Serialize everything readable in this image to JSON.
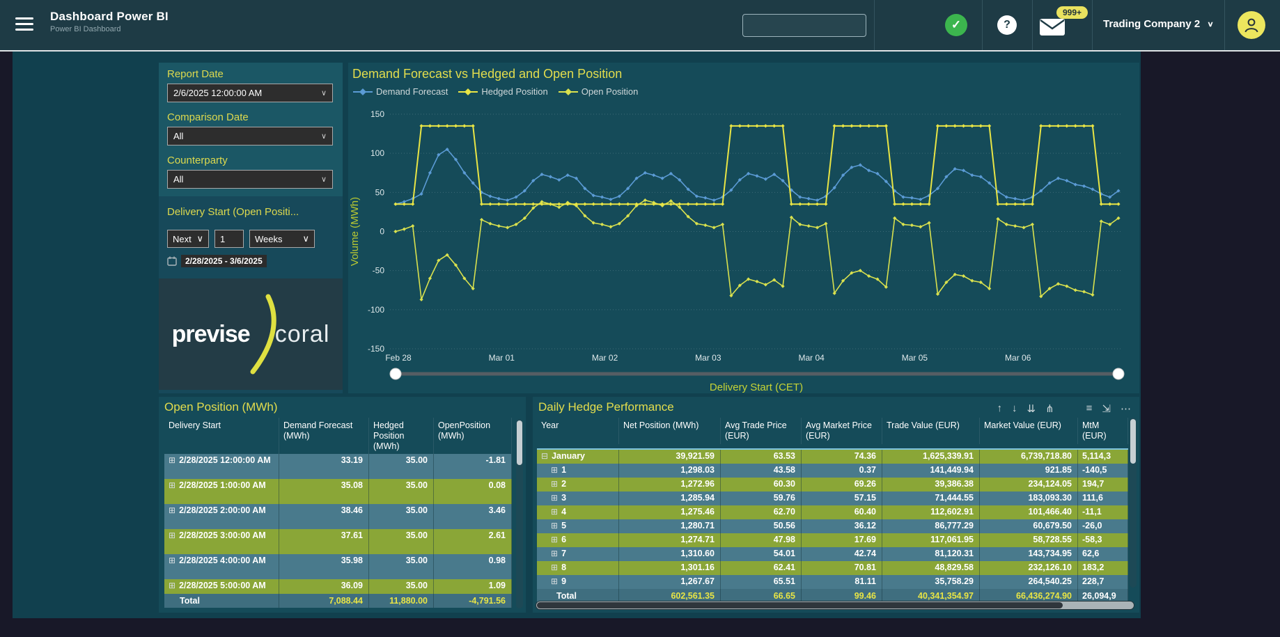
{
  "header": {
    "title": "Dashboard Power BI",
    "subtitle": "Power BI Dashboard",
    "search_placeholder": "",
    "check_glyph": "✓",
    "help_glyph": "?",
    "mail_badge": "999+",
    "company": "Trading Company 2",
    "chevron_glyph": "∨"
  },
  "filters": {
    "report_date": {
      "label": "Report Date",
      "value": "2/6/2025 12:00:00 AM"
    },
    "comparison_date": {
      "label": "Comparison Date",
      "value": "All"
    },
    "counterparty": {
      "label": "Counterparty",
      "value": "All"
    },
    "delivery_start": {
      "label": "Delivery Start (Open Positi...",
      "relative": "Next",
      "amount": "1",
      "unit": "Weeks",
      "range": "2/28/2025 - 3/6/2025"
    }
  },
  "logo": {
    "part1": "previse",
    "part2": "coral"
  },
  "colors": {
    "demand": "#5b9bd5",
    "hedged": "#e9e545",
    "open": "#d9e14e",
    "accent_yellow": "#e3dd4d",
    "row_blue": "#497a8c",
    "row_green": "#8aa637",
    "status_green": "#3cb54e",
    "badge_yellow": "#e9e25f"
  },
  "chart_data": {
    "type": "line",
    "title": "Demand Forecast vs Hedged and Open Position",
    "ylabel": "Volume (MWh)",
    "xlabel": "Delivery Start (CET)",
    "ylim": [
      -150,
      150
    ],
    "y_ticks": [
      150,
      100,
      50,
      0,
      -50,
      -100,
      -150
    ],
    "x_tick_labels": [
      "Feb 28",
      "Mar 01",
      "Mar 02",
      "Mar 03",
      "Mar 04",
      "Mar 05",
      "Mar 06"
    ],
    "points_per_day": 12,
    "grid": true,
    "legend_position": "top",
    "series": [
      {
        "name": "Demand Forecast",
        "color": "#5b9bd5",
        "values": [
          35,
          38,
          42,
          48,
          75,
          98,
          105,
          92,
          75,
          62,
          50,
          45,
          42,
          40,
          44,
          52,
          65,
          73,
          70,
          66,
          72,
          68,
          55,
          46,
          44,
          41,
          45,
          55,
          68,
          75,
          72,
          68,
          74,
          66,
          54,
          45,
          43,
          40,
          44,
          53,
          66,
          74,
          71,
          67,
          73,
          65,
          53,
          44,
          42,
          40,
          45,
          56,
          72,
          82,
          85,
          78,
          74,
          64,
          52,
          44,
          43,
          41,
          46,
          55,
          70,
          80,
          78,
          72,
          70,
          62,
          51,
          44,
          42,
          40,
          44,
          52,
          62,
          68,
          65,
          60,
          58,
          54,
          48,
          44,
          52
        ]
      },
      {
        "name": "Hedged Position",
        "color": "#e9e545",
        "values": [
          35,
          35,
          35,
          135,
          135,
          135,
          135,
          135,
          135,
          135,
          35,
          35,
          35,
          35,
          35,
          35,
          35,
          35,
          35,
          35,
          35,
          35,
          35,
          35,
          35,
          35,
          35,
          35,
          35,
          35,
          35,
          35,
          35,
          35,
          35,
          35,
          35,
          35,
          35,
          135,
          135,
          135,
          135,
          135,
          135,
          135,
          35,
          35,
          35,
          35,
          35,
          135,
          135,
          135,
          135,
          135,
          135,
          135,
          35,
          35,
          35,
          35,
          35,
          135,
          135,
          135,
          135,
          135,
          135,
          135,
          35,
          35,
          35,
          35,
          35,
          135,
          135,
          135,
          135,
          135,
          135,
          135,
          35,
          35,
          35
        ]
      },
      {
        "name": "Open Position",
        "color": "#d9e14e",
        "values": [
          0,
          3,
          7,
          -87,
          -60,
          -37,
          -30,
          -43,
          -60,
          -73,
          15,
          10,
          7,
          5,
          9,
          17,
          30,
          38,
          35,
          31,
          37,
          33,
          20,
          11,
          9,
          6,
          10,
          20,
          33,
          40,
          37,
          33,
          39,
          31,
          19,
          10,
          8,
          5,
          9,
          -82,
          -69,
          -61,
          -64,
          -68,
          -62,
          -70,
          18,
          9,
          7,
          5,
          10,
          -79,
          -63,
          -53,
          -50,
          -57,
          -61,
          -71,
          17,
          9,
          8,
          6,
          11,
          -80,
          -65,
          -55,
          -57,
          -63,
          -65,
          -73,
          16,
          9,
          7,
          5,
          9,
          -83,
          -73,
          -67,
          -70,
          -75,
          -77,
          -81,
          13,
          9,
          17
        ]
      }
    ]
  },
  "open_table": {
    "title": "Open Position (MWh)",
    "columns": [
      "Delivery Start",
      "Demand Forecast (MWh)",
      "Hedged Position (MWh)",
      "OpenPosition (MWh)"
    ],
    "rows": [
      {
        "delivery": "2/28/2025 12:00:00 AM",
        "values": [
          "33.19",
          "35.00",
          "-1.81"
        ],
        "shade": "blue"
      },
      {
        "delivery": "2/28/2025 1:00:00 AM",
        "values": [
          "35.08",
          "35.00",
          "0.08"
        ],
        "shade": "green"
      },
      {
        "delivery": "2/28/2025 2:00:00 AM",
        "values": [
          "38.46",
          "35.00",
          "3.46"
        ],
        "shade": "blue"
      },
      {
        "delivery": "2/28/2025 3:00:00 AM",
        "values": [
          "37.61",
          "35.00",
          "2.61"
        ],
        "shade": "green"
      },
      {
        "delivery": "2/28/2025 4:00:00 AM",
        "values": [
          "35.98",
          "35.00",
          "0.98"
        ],
        "shade": "blue"
      },
      {
        "delivery": "2/28/2025 5:00:00 AM",
        "values": [
          "36.09",
          "35.00",
          "1.09"
        ],
        "shade": "green"
      }
    ],
    "total": {
      "label": "Total",
      "values": [
        "7,088.44",
        "11,880.00",
        "-4,791.56"
      ]
    }
  },
  "hedge_table": {
    "title": "Daily Hedge Performance",
    "columns": [
      "Year",
      "Net Position (MWh)",
      "Avg Trade Price (EUR)",
      "Avg Market Price (EUR)",
      "Trade Value (EUR)",
      "Market Value (EUR)",
      "MtM (EUR)"
    ],
    "toolbar_icons": [
      {
        "name": "sort-ascending-icon",
        "glyph": "↑"
      },
      {
        "name": "sort-descending-icon",
        "glyph": "↓"
      },
      {
        "name": "expand-all-icon",
        "glyph": "⇊"
      },
      {
        "name": "drill-down-icon",
        "glyph": "⋔"
      },
      {
        "name": "spacer",
        "glyph": ""
      },
      {
        "name": "filter-icon",
        "glyph": "≡"
      },
      {
        "name": "focus-mode-icon",
        "glyph": "⇲"
      },
      {
        "name": "more-options-icon",
        "glyph": "⋯"
      }
    ],
    "rows": [
      {
        "label": "January",
        "level": 0,
        "expanded": true,
        "shade": "green",
        "values": [
          "39,921.59",
          "63.53",
          "74.36",
          "1,625,339.91",
          "6,739,718.80",
          "5,114,3"
        ]
      },
      {
        "label": "1",
        "level": 1,
        "expanded": false,
        "shade": "blue",
        "values": [
          "1,298.03",
          "43.58",
          "0.37",
          "141,449.94",
          "921.85",
          "-140,5"
        ]
      },
      {
        "label": "2",
        "level": 1,
        "expanded": false,
        "shade": "green",
        "values": [
          "1,272.96",
          "60.30",
          "69.26",
          "39,386.38",
          "234,124.05",
          "194,7"
        ]
      },
      {
        "label": "3",
        "level": 1,
        "expanded": false,
        "shade": "blue",
        "values": [
          "1,285.94",
          "59.76",
          "57.15",
          "71,444.55",
          "183,093.30",
          "111,6"
        ]
      },
      {
        "label": "4",
        "level": 1,
        "expanded": false,
        "shade": "green",
        "values": [
          "1,275.46",
          "62.70",
          "60.40",
          "112,602.91",
          "101,466.40",
          "-11,1"
        ]
      },
      {
        "label": "5",
        "level": 1,
        "expanded": false,
        "shade": "blue",
        "values": [
          "1,280.71",
          "50.56",
          "36.12",
          "86,777.29",
          "60,679.50",
          "-26,0"
        ]
      },
      {
        "label": "6",
        "level": 1,
        "expanded": false,
        "shade": "green",
        "values": [
          "1,274.71",
          "47.98",
          "17.69",
          "117,061.95",
          "58,728.55",
          "-58,3"
        ]
      },
      {
        "label": "7",
        "level": 1,
        "expanded": false,
        "shade": "blue",
        "values": [
          "1,310.60",
          "54.01",
          "42.74",
          "81,120.31",
          "143,734.95",
          "62,6"
        ]
      },
      {
        "label": "8",
        "level": 1,
        "expanded": false,
        "shade": "green",
        "values": [
          "1,301.16",
          "62.41",
          "70.81",
          "48,829.58",
          "232,126.10",
          "183,2"
        ]
      },
      {
        "label": "9",
        "level": 1,
        "expanded": false,
        "shade": "blue",
        "values": [
          "1,267.67",
          "65.51",
          "81.11",
          "35,758.29",
          "264,540.25",
          "228,7"
        ]
      }
    ],
    "total": {
      "label": "Total",
      "values": [
        "602,561.35",
        "66.65",
        "99.46",
        "40,341,354.97",
        "66,436,274.90",
        "26,094,9"
      ]
    }
  }
}
